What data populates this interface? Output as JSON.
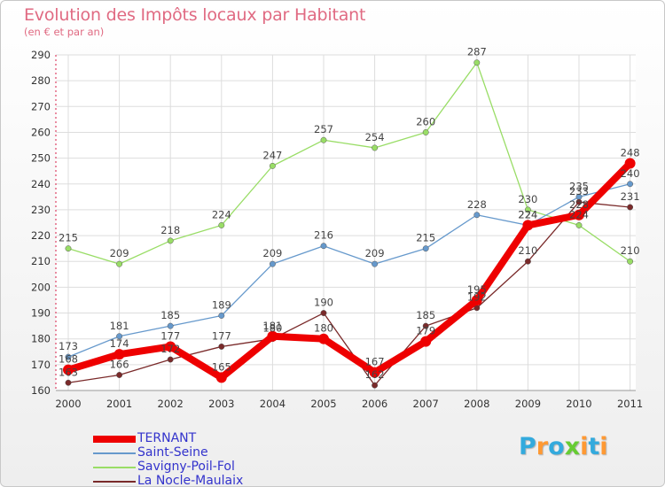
{
  "chart_data": {
    "type": "line",
    "title": "Evolution des Impôts locaux par Habitant",
    "subtitle": "(en € et par an)",
    "xlabel": "",
    "ylabel": "",
    "x": [
      "2000",
      "2001",
      "2002",
      "2003",
      "2004",
      "2005",
      "2006",
      "2007",
      "2008",
      "2009",
      "2010",
      "2011"
    ],
    "ylim": [
      160,
      290
    ],
    "yticks": [
      160,
      170,
      180,
      190,
      200,
      210,
      220,
      230,
      240,
      250,
      260,
      270,
      280,
      290
    ],
    "grid": true,
    "legend_position": "bottom-left",
    "series": [
      {
        "name": "Savigny-Poil-Fol",
        "color": "#99dd66",
        "values": [
          215,
          209,
          218,
          224,
          247,
          257,
          254,
          260,
          287,
          230,
          224,
          210
        ],
        "labels": [
          "215",
          "209",
          "218",
          "224",
          "247",
          "257",
          "254",
          "260",
          "287",
          "230",
          "224",
          "210"
        ]
      },
      {
        "name": "Saint-Seine",
        "color": "#6699cc",
        "values": [
          173,
          181,
          185,
          189,
          209,
          216,
          209,
          215,
          228,
          224,
          235,
          240
        ],
        "labels": [
          "173",
          "181",
          "185",
          "189",
          "209",
          "216",
          "209",
          "215",
          "228",
          "224",
          "235",
          "240"
        ]
      },
      {
        "name": "La Nocle-Maulaix",
        "color": "#7a2a2a",
        "values": [
          163,
          166,
          172,
          177,
          180,
          190,
          162,
          185,
          192,
          210,
          233,
          231
        ],
        "labels": [
          "163",
          "166",
          "172",
          "177",
          "180",
          "190",
          "162",
          "185",
          "192",
          "210",
          "233",
          "231"
        ]
      },
      {
        "name": "TERNANT",
        "color": "#ee0000",
        "values": [
          168,
          174,
          177,
          165,
          181,
          180,
          167,
          179,
          195,
          224,
          228,
          248
        ],
        "labels": [
          "168",
          "174",
          "177",
          "165",
          "181",
          "180",
          "167",
          "179",
          "195",
          "224",
          "228",
          "248"
        ]
      }
    ],
    "legend_order": [
      "TERNANT",
      "Saint-Seine",
      "Savigny-Poil-Fol",
      "La Nocle-Maulaix"
    ]
  },
  "logo": {
    "text": "Proxiti",
    "letters": [
      "P",
      "r",
      "o",
      "x",
      "i",
      "t",
      "i"
    ],
    "colors": [
      "#33aadd",
      "#ff9933",
      "#33aadd",
      "#66cc33",
      "#ff9933",
      "#33aadd",
      "#ff9933"
    ]
  }
}
